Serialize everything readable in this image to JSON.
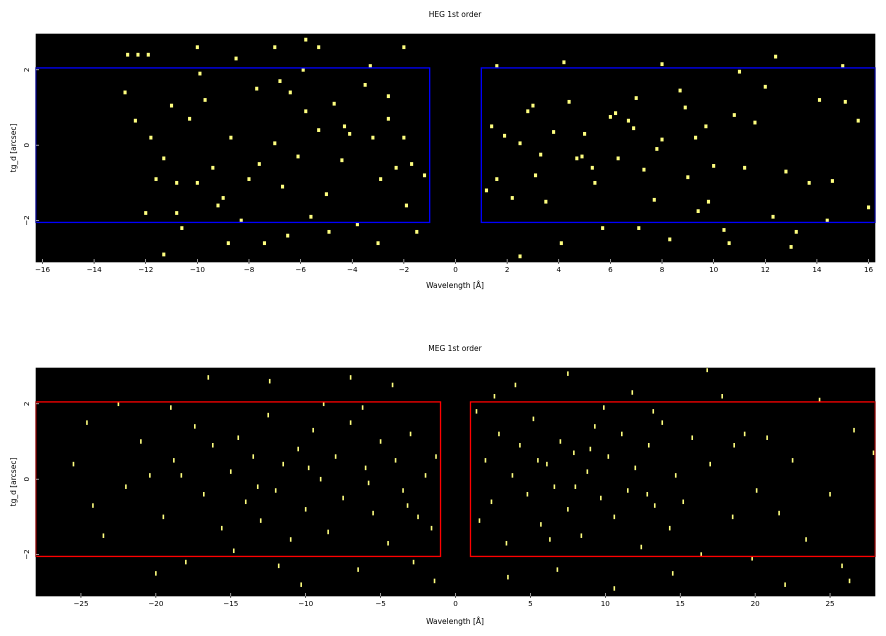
{
  "chart_data": [
    {
      "type": "scatter",
      "title": "HEG 1st order",
      "xlabel": "Wavelength [Å]",
      "ylabel": "tg_d [arcsec]",
      "xlim": [
        -16.25,
        16.25
      ],
      "ylim": [
        -3.1,
        2.95
      ],
      "xticks": [
        -16,
        -14,
        -12,
        -10,
        -8,
        -6,
        -4,
        -2,
        0,
        2,
        4,
        6,
        8,
        10,
        12,
        14,
        16
      ],
      "xtick_labels": [
        "−16",
        "−14",
        "−12",
        "−10",
        "−8",
        "−6",
        "−4",
        "−2",
        "0",
        "2",
        "4",
        "6",
        "8",
        "10",
        "12",
        "14",
        "16"
      ],
      "yticks": [
        -2,
        0,
        2
      ],
      "ytick_labels": [
        "−2",
        "0",
        "2"
      ],
      "background": "#000000",
      "point_color": "#ffff80",
      "point_width": 0.12,
      "point_height": 0.1,
      "regions": [
        {
          "x": [
            -16.25,
            -1.0
          ],
          "y": [
            -2.05,
            2.05
          ],
          "color": "#0000ff"
        },
        {
          "x": [
            1.0,
            16.25
          ],
          "y": [
            -2.05,
            2.05
          ],
          "color": "#0000ff"
        }
      ],
      "grid": false,
      "points": [
        [
          -12.7,
          2.4
        ],
        [
          -12.3,
          2.4
        ],
        [
          -11.9,
          2.4
        ],
        [
          -10.0,
          2.6
        ],
        [
          -7.0,
          2.6
        ],
        [
          -5.8,
          2.8
        ],
        [
          -5.3,
          2.6
        ],
        [
          -2.0,
          2.6
        ],
        [
          -12.8,
          1.4
        ],
        [
          -12.4,
          0.65
        ],
        [
          -11.8,
          0.2
        ],
        [
          -11.3,
          -0.35
        ],
        [
          -11.0,
          1.05
        ],
        [
          -10.8,
          -1.8
        ],
        [
          -10.6,
          -2.2
        ],
        [
          -10.3,
          0.7
        ],
        [
          -10.0,
          -1.0
        ],
        [
          -9.7,
          1.2
        ],
        [
          -9.4,
          -0.6
        ],
        [
          -9.0,
          -1.4
        ],
        [
          -8.7,
          0.2
        ],
        [
          -8.3,
          -2.0
        ],
        [
          -8.0,
          -0.9
        ],
        [
          -7.7,
          1.5
        ],
        [
          -7.4,
          -2.6
        ],
        [
          -7.0,
          0.05
        ],
        [
          -6.7,
          -1.1
        ],
        [
          -6.4,
          1.4
        ],
        [
          -6.1,
          -0.3
        ],
        [
          -5.8,
          0.9
        ],
        [
          -5.6,
          -1.9
        ],
        [
          -5.3,
          0.4
        ],
        [
          -5.0,
          -1.3
        ],
        [
          -4.7,
          1.1
        ],
        [
          -4.4,
          -0.4
        ],
        [
          -4.1,
          0.3
        ],
        [
          -3.8,
          -2.1
        ],
        [
          -3.5,
          1.6
        ],
        [
          -3.2,
          0.2
        ],
        [
          -2.9,
          -0.9
        ],
        [
          -2.6,
          1.3
        ],
        [
          -2.3,
          -0.6
        ],
        [
          -2.0,
          0.2
        ],
        [
          -1.7,
          -0.5
        ],
        [
          -1.2,
          -0.8
        ],
        [
          -3.3,
          2.1
        ],
        [
          -6.8,
          1.7
        ],
        [
          -8.5,
          2.3
        ],
        [
          -9.9,
          1.9
        ],
        [
          -4.3,
          0.5
        ],
        [
          -6.5,
          -2.4
        ],
        [
          -10.8,
          -1.0
        ],
        [
          -1.9,
          -1.6
        ],
        [
          -11.6,
          -0.9
        ],
        [
          -7.6,
          -0.5
        ],
        [
          -5.9,
          2.0
        ],
        [
          -3.0,
          -2.6
        ],
        [
          -9.2,
          -1.6
        ],
        [
          -8.8,
          -2.6
        ],
        [
          -11.3,
          -2.9
        ],
        [
          -4.9,
          -2.3
        ],
        [
          -2.6,
          0.7
        ],
        [
          -1.5,
          -2.3
        ],
        [
          -12.0,
          -1.8
        ],
        [
          1.4,
          0.5
        ],
        [
          1.6,
          -0.9
        ],
        [
          1.9,
          0.25
        ],
        [
          2.2,
          -1.4
        ],
        [
          2.5,
          0.05
        ],
        [
          2.8,
          0.9
        ],
        [
          3.1,
          -0.8
        ],
        [
          3.5,
          -1.5
        ],
        [
          3.8,
          0.35
        ],
        [
          4.1,
          -2.6
        ],
        [
          4.4,
          1.15
        ],
        [
          4.7,
          -0.35
        ],
        [
          5.0,
          0.3
        ],
        [
          5.4,
          -1.0
        ],
        [
          5.7,
          -2.2
        ],
        [
          6.0,
          0.75
        ],
        [
          6.3,
          -0.35
        ],
        [
          6.7,
          0.65
        ],
        [
          7.0,
          1.25
        ],
        [
          7.3,
          -0.65
        ],
        [
          7.7,
          -1.45
        ],
        [
          8.0,
          0.15
        ],
        [
          8.3,
          -2.5
        ],
        [
          8.7,
          1.45
        ],
        [
          9.0,
          -0.85
        ],
        [
          9.4,
          -1.75
        ],
        [
          9.7,
          0.5
        ],
        [
          10.0,
          -0.55
        ],
        [
          10.4,
          -2.25
        ],
        [
          10.8,
          0.8
        ],
        [
          11.2,
          -0.6
        ],
        [
          11.6,
          0.6
        ],
        [
          12.0,
          1.55
        ],
        [
          12.4,
          2.35
        ],
        [
          12.8,
          -0.7
        ],
        [
          13.2,
          -2.3
        ],
        [
          13.7,
          -1.0
        ],
        [
          14.1,
          1.2
        ],
        [
          14.6,
          -0.95
        ],
        [
          15.1,
          1.15
        ],
        [
          15.6,
          0.65
        ],
        [
          16.0,
          -1.65
        ],
        [
          8.0,
          2.15
        ],
        [
          6.2,
          0.85
        ],
        [
          3.3,
          -0.25
        ],
        [
          11.0,
          1.95
        ],
        [
          1.6,
          2.1
        ],
        [
          4.9,
          -0.3
        ],
        [
          7.8,
          -0.1
        ],
        [
          9.8,
          -1.5
        ],
        [
          2.5,
          -2.95
        ],
        [
          12.3,
          -1.9
        ],
        [
          15.0,
          2.1
        ],
        [
          5.3,
          -0.6
        ],
        [
          10.6,
          -2.6
        ],
        [
          7.1,
          -2.2
        ],
        [
          4.2,
          2.2
        ],
        [
          13.0,
          -2.7
        ],
        [
          8.9,
          1.0
        ],
        [
          1.2,
          -1.2
        ],
        [
          6.9,
          0.45
        ],
        [
          14.4,
          -2.0
        ],
        [
          3.0,
          1.05
        ],
        [
          9.3,
          0.2
        ]
      ]
    },
    {
      "type": "scatter",
      "title": "MEG 1st order",
      "xlabel": "Wavelength [Å]",
      "ylabel": "tg_d [arcsec]",
      "xlim": [
        -28,
        28
      ],
      "ylim": [
        -3.1,
        2.95
      ],
      "xticks": [
        -25,
        -20,
        -15,
        -10,
        -5,
        0,
        5,
        10,
        15,
        20,
        25
      ],
      "xtick_labels": [
        "−25",
        "−20",
        "−15",
        "−10",
        "−5",
        "0",
        "5",
        "10",
        "15",
        "20",
        "25"
      ],
      "yticks": [
        -2,
        0,
        2
      ],
      "ytick_labels": [
        "−2",
        "0",
        "2"
      ],
      "background": "#000000",
      "point_color": "#ffff80",
      "point_width": 0.1,
      "point_height": 0.12,
      "regions": [
        {
          "x": [
            -28,
            -1.0
          ],
          "y": [
            -2.05,
            2.05
          ],
          "color": "#ff0000"
        },
        {
          "x": [
            1.0,
            28
          ],
          "y": [
            -2.05,
            2.05
          ],
          "color": "#ff0000"
        }
      ],
      "grid": false,
      "points": [
        [
          -24.6,
          1.5
        ],
        [
          -24.2,
          -0.7
        ],
        [
          -22.5,
          2.0
        ],
        [
          -22.0,
          -0.2
        ],
        [
          -21.0,
          1.0
        ],
        [
          -20.4,
          0.1
        ],
        [
          -19.5,
          -1.0
        ],
        [
          -18.8,
          0.5
        ],
        [
          -18.0,
          -2.2
        ],
        [
          -17.4,
          1.4
        ],
        [
          -16.8,
          -0.4
        ],
        [
          -16.2,
          0.9
        ],
        [
          -15.6,
          -1.3
        ],
        [
          -15.0,
          0.2
        ],
        [
          -14.5,
          1.1
        ],
        [
          -14.0,
          -0.6
        ],
        [
          -13.5,
          0.6
        ],
        [
          -13.0,
          -1.1
        ],
        [
          -12.5,
          1.7
        ],
        [
          -12.0,
          -0.3
        ],
        [
          -11.5,
          0.4
        ],
        [
          -11.0,
          -1.6
        ],
        [
          -10.5,
          0.8
        ],
        [
          -10.0,
          -0.8
        ],
        [
          -9.5,
          1.3
        ],
        [
          -9.0,
          0.0
        ],
        [
          -8.5,
          -1.4
        ],
        [
          -8.0,
          0.6
        ],
        [
          -7.5,
          -0.5
        ],
        [
          -7.0,
          1.5
        ],
        [
          -6.5,
          -2.4
        ],
        [
          -6.0,
          0.3
        ],
        [
          -5.5,
          -0.9
        ],
        [
          -5.0,
          1.0
        ],
        [
          -4.5,
          -1.7
        ],
        [
          -4.0,
          0.5
        ],
        [
          -3.5,
          -0.3
        ],
        [
          -3.0,
          1.2
        ],
        [
          -2.5,
          -1.0
        ],
        [
          -2.0,
          0.1
        ],
        [
          -1.6,
          -1.3
        ],
        [
          -1.3,
          0.6
        ],
        [
          -16.5,
          2.7
        ],
        [
          -12.4,
          2.6
        ],
        [
          -7.0,
          2.7
        ],
        [
          -20.0,
          -2.5
        ],
        [
          -10.3,
          -2.8
        ],
        [
          -4.2,
          2.5
        ],
        [
          -23.5,
          -1.5
        ],
        [
          -14.8,
          -1.9
        ],
        [
          -8.8,
          2.0
        ],
        [
          -2.8,
          -2.2
        ],
        [
          -18.3,
          0.1
        ],
        [
          -6.2,
          1.9
        ],
        [
          -11.8,
          -2.3
        ],
        [
          -1.4,
          -2.7
        ],
        [
          -25.5,
          0.4
        ],
        [
          -19.0,
          1.9
        ],
        [
          -13.2,
          -0.2
        ],
        [
          -9.8,
          0.3
        ],
        [
          -5.8,
          -0.1
        ],
        [
          -3.2,
          -0.7
        ],
        [
          1.6,
          -1.1
        ],
        [
          2.0,
          0.5
        ],
        [
          2.4,
          -0.6
        ],
        [
          2.9,
          1.2
        ],
        [
          3.4,
          -1.7
        ],
        [
          3.8,
          0.1
        ],
        [
          4.3,
          0.9
        ],
        [
          4.8,
          -0.4
        ],
        [
          5.2,
          1.6
        ],
        [
          5.7,
          -1.2
        ],
        [
          6.1,
          0.4
        ],
        [
          6.6,
          -0.2
        ],
        [
          7.0,
          1.0
        ],
        [
          7.5,
          -0.8
        ],
        [
          7.9,
          0.7
        ],
        [
          8.4,
          -1.5
        ],
        [
          8.8,
          0.2
        ],
        [
          9.3,
          1.4
        ],
        [
          9.7,
          -0.5
        ],
        [
          10.2,
          0.6
        ],
        [
          10.6,
          -1.0
        ],
        [
          11.1,
          1.2
        ],
        [
          11.5,
          -0.3
        ],
        [
          12.0,
          0.3
        ],
        [
          12.4,
          -1.8
        ],
        [
          12.9,
          0.9
        ],
        [
          13.3,
          -0.7
        ],
        [
          13.8,
          1.5
        ],
        [
          14.3,
          -1.3
        ],
        [
          14.7,
          0.1
        ],
        [
          15.2,
          -0.6
        ],
        [
          15.8,
          1.1
        ],
        [
          16.4,
          -2.0
        ],
        [
          17.0,
          0.4
        ],
        [
          17.8,
          2.2
        ],
        [
          18.5,
          -1.0
        ],
        [
          19.3,
          1.2
        ],
        [
          20.1,
          -0.3
        ],
        [
          20.8,
          1.1
        ],
        [
          21.6,
          -0.9
        ],
        [
          22.5,
          0.5
        ],
        [
          23.4,
          -1.6
        ],
        [
          24.3,
          2.1
        ],
        [
          25.0,
          -0.4
        ],
        [
          25.8,
          -2.3
        ],
        [
          26.6,
          1.3
        ],
        [
          27.9,
          0.7
        ],
        [
          4.0,
          2.5
        ],
        [
          7.5,
          2.8
        ],
        [
          11.8,
          2.3
        ],
        [
          16.8,
          2.9
        ],
        [
          3.5,
          -2.6
        ],
        [
          6.8,
          -2.4
        ],
        [
          10.6,
          -2.9
        ],
        [
          14.5,
          -2.5
        ],
        [
          22.0,
          -2.8
        ],
        [
          1.4,
          1.8
        ],
        [
          5.5,
          0.5
        ],
        [
          8.0,
          -0.2
        ],
        [
          9.0,
          0.8
        ],
        [
          12.8,
          -0.4
        ],
        [
          6.3,
          -1.6
        ],
        [
          13.2,
          1.8
        ],
        [
          18.6,
          0.9
        ],
        [
          2.6,
          2.2
        ],
        [
          9.9,
          1.9
        ],
        [
          19.8,
          -2.1
        ],
        [
          26.3,
          -2.7
        ]
      ]
    }
  ]
}
